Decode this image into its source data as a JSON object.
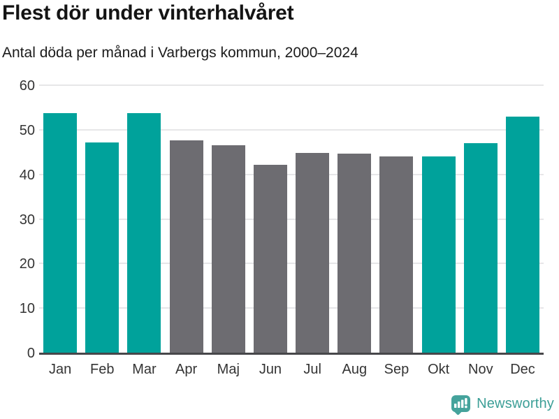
{
  "header": {
    "title": "Flest dör under vinterhalvåret",
    "subtitle": "Antal döda per månad i Varbergs kommun, 2000–2024"
  },
  "chart_data": {
    "type": "bar",
    "title": "Flest dör under vinterhalvåret",
    "subtitle": "Antal döda per månad i Varbergs kommun, 2000–2024",
    "categories": [
      "Jan",
      "Feb",
      "Mar",
      "Apr",
      "Maj",
      "Jun",
      "Jul",
      "Aug",
      "Sep",
      "Okt",
      "Nov",
      "Dec"
    ],
    "values": [
      54.0,
      47.5,
      54.0,
      48.0,
      46.9,
      42.4,
      45.1,
      44.9,
      44.3,
      44.4,
      47.3,
      53.2
    ],
    "bar_roles": [
      "winter",
      "winter",
      "winter",
      "summer",
      "summer",
      "summer",
      "summer",
      "summer",
      "summer",
      "winter",
      "winter",
      "winter"
    ],
    "colors": {
      "winter": "#00A29B",
      "summer": "#6D6C71"
    },
    "xlabel": "",
    "ylabel": "",
    "ylim": [
      0,
      60
    ],
    "yticks": [
      0,
      10,
      20,
      30,
      40,
      50,
      60
    ],
    "grid": true,
    "legend": "none"
  },
  "footer": {
    "brand": "Newsworthy",
    "brand_color": "#3C9F97",
    "logo_color": "#45A39C"
  }
}
